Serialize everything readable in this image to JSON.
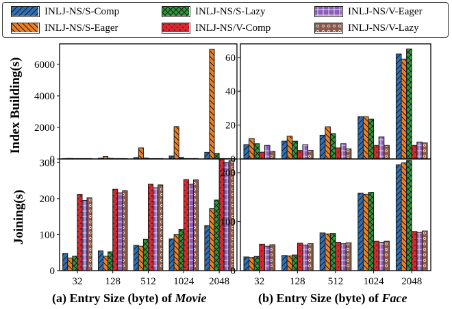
{
  "legend": [
    {
      "name": "INLJ-NS/S-Comp",
      "color": "#2f6fb5",
      "pattern": "diag-fwd"
    },
    {
      "name": "INLJ-NS/S-Eager",
      "color": "#f07f1e",
      "pattern": "diag-back"
    },
    {
      "name": "INLJ-NS/S-Lazy",
      "color": "#2e9a3a",
      "pattern": "cross"
    },
    {
      "name": "INLJ-NS/V-Comp",
      "color": "#d6282f",
      "pattern": "dots"
    },
    {
      "name": "INLJ-NS/V-Eager",
      "color": "#8a5bb8",
      "pattern": "grid"
    },
    {
      "name": "INLJ-NS/V-Lazy",
      "color": "#8c5a4a",
      "pattern": "circles"
    }
  ],
  "ylabels": {
    "top": "Index Building(s)",
    "bottom": "Joining(s)"
  },
  "captions": {
    "left_prefix": "(a) Entry Size (byte) of ",
    "left_name": "Movie",
    "right_prefix": "(b) Entry Size (byte) of ",
    "right_name": "Face"
  },
  "chart_data": [
    {
      "type": "bar",
      "panel": "Movie – Index Building",
      "categories": [
        "32",
        "128",
        "512",
        "1024",
        "2048"
      ],
      "ylim": [
        0,
        7300
      ],
      "yticks": [
        0,
        2000,
        4000,
        6000
      ],
      "series": [
        {
          "name": "INLJ-NS/S-Comp",
          "values": [
            18,
            50,
            90,
            190,
            420
          ]
        },
        {
          "name": "INLJ-NS/S-Eager",
          "values": [
            35,
            150,
            700,
            2050,
            6950
          ]
        },
        {
          "name": "INLJ-NS/S-Lazy",
          "values": [
            15,
            40,
            60,
            100,
            360
          ]
        },
        {
          "name": "INLJ-NS/V-Comp",
          "values": [
            5,
            8,
            10,
            12,
            15
          ]
        },
        {
          "name": "INLJ-NS/V-Eager",
          "values": [
            6,
            9,
            12,
            14,
            18
          ]
        },
        {
          "name": "INLJ-NS/V-Lazy",
          "values": [
            5,
            7,
            10,
            12,
            14
          ]
        }
      ]
    },
    {
      "type": "bar",
      "panel": "Face – Index Building",
      "categories": [
        "32",
        "128",
        "512",
        "1024",
        "2048"
      ],
      "ylim": [
        0,
        68
      ],
      "yticks": [
        0,
        20,
        40,
        60
      ],
      "series": [
        {
          "name": "INLJ-NS/S-Comp",
          "values": [
            8.5,
            10.5,
            14,
            25,
            62
          ]
        },
        {
          "name": "INLJ-NS/S-Eager",
          "values": [
            12,
            13.5,
            19,
            25,
            59
          ]
        },
        {
          "name": "INLJ-NS/S-Lazy",
          "values": [
            9,
            10.5,
            15,
            23.5,
            65
          ]
        },
        {
          "name": "INLJ-NS/V-Comp",
          "values": [
            4,
            5,
            6.5,
            8,
            8
          ]
        },
        {
          "name": "INLJ-NS/V-Eager",
          "values": [
            8,
            8.5,
            9,
            13,
            10
          ]
        },
        {
          "name": "INLJ-NS/V-Lazy",
          "values": [
            4.5,
            5,
            6,
            8,
            9.5
          ]
        }
      ]
    },
    {
      "type": "bar",
      "panel": "Movie – Joining",
      "categories": [
        "32",
        "128",
        "512",
        "1024",
        "2048"
      ],
      "ylim": [
        0,
        310
      ],
      "yticks": [
        0,
        100,
        200,
        300
      ],
      "series": [
        {
          "name": "INLJ-NS/S-Comp",
          "values": [
            48,
            55,
            70,
            88,
            125
          ]
        },
        {
          "name": "INLJ-NS/S-Eager",
          "values": [
            35,
            40,
            68,
            100,
            172
          ]
        },
        {
          "name": "INLJ-NS/S-Lazy",
          "values": [
            40,
            52,
            87,
            115,
            196
          ]
        },
        {
          "name": "INLJ-NS/V-Comp",
          "values": [
            212,
            226,
            240,
            253,
            310
          ]
        },
        {
          "name": "INLJ-NS/V-Eager",
          "values": [
            195,
            216,
            230,
            240,
            300
          ]
        },
        {
          "name": "INLJ-NS/V-Lazy",
          "values": [
            202,
            222,
            238,
            252,
            305
          ]
        }
      ]
    },
    {
      "type": "bar",
      "panel": "Face – Joining",
      "categories": [
        "32",
        "128",
        "512",
        "1024",
        "2048"
      ],
      "ylim": [
        0,
        228
      ],
      "yticks": [
        0,
        100,
        200
      ],
      "series": [
        {
          "name": "INLJ-NS/S-Comp",
          "values": [
            28,
            31,
            77,
            158,
            216
          ]
        },
        {
          "name": "INLJ-NS/S-Eager",
          "values": [
            27,
            30,
            75,
            156,
            220
          ]
        },
        {
          "name": "INLJ-NS/S-Lazy",
          "values": [
            29,
            32,
            76,
            160,
            225
          ]
        },
        {
          "name": "INLJ-NS/V-Comp",
          "values": [
            54,
            56,
            58,
            60,
            80
          ]
        },
        {
          "name": "INLJ-NS/V-Eager",
          "values": [
            50,
            52,
            55,
            58,
            78
          ]
        },
        {
          "name": "INLJ-NS/V-Lazy",
          "values": [
            53,
            55,
            57,
            60,
            81
          ]
        }
      ]
    }
  ]
}
